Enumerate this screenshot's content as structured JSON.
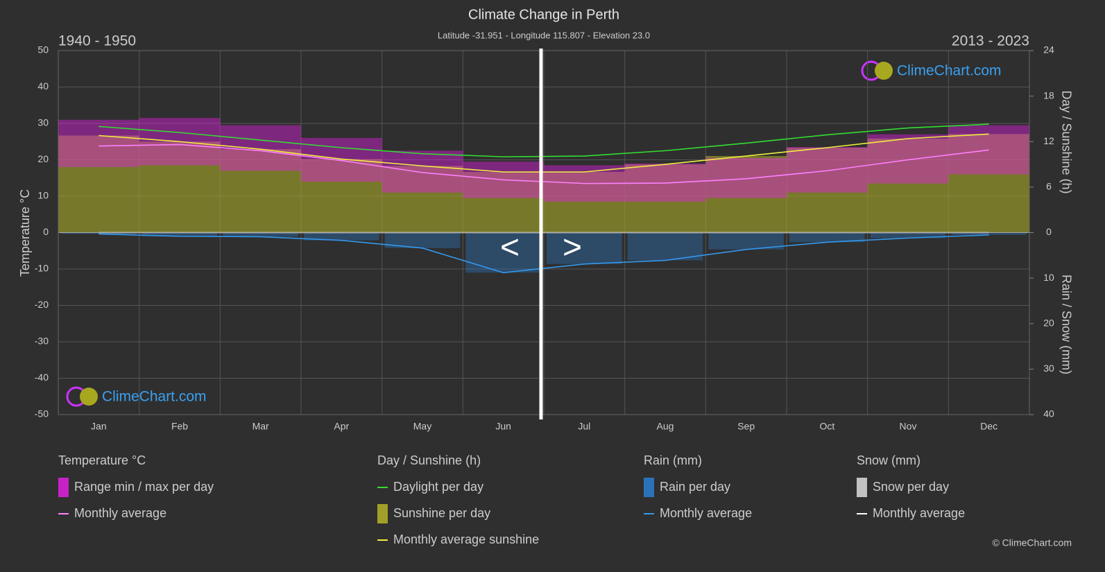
{
  "chart_data": {
    "type": "climate",
    "title": "Climate Change in Perth",
    "subtitle": "Latitude -31.951 - Longitude 115.807 - Elevation 23.0",
    "left_period": "1940 - 1950",
    "right_period": "2013 - 2023",
    "categories": [
      "Jan",
      "Feb",
      "Mar",
      "Apr",
      "May",
      "Jun",
      "Jul",
      "Aug",
      "Sep",
      "Oct",
      "Nov",
      "Dec"
    ],
    "ylabel": "Temperature °C",
    "y2label": "Day / Sunshine (h)",
    "y3label": "Rain / Snow (mm)",
    "ylim": [
      -50,
      50
    ],
    "yticks": [
      -50,
      -40,
      -30,
      -20,
      -10,
      0,
      10,
      20,
      30,
      40,
      50
    ],
    "y2lim": [
      0,
      24
    ],
    "y2ticks": [
      0,
      6,
      12,
      18,
      24
    ],
    "y3lim": [
      0,
      40
    ],
    "y3ticks": [
      10,
      20,
      30,
      40
    ],
    "grid": true,
    "legend_groups": [
      "Temperature °C",
      "Day / Sunshine (h)",
      "Rain (mm)",
      "Snow (mm)"
    ],
    "series": [
      {
        "name": "Range min / max per day",
        "group": 0,
        "kind": "band",
        "axis": "y",
        "color": "#e020e0",
        "values": [
          31,
          31.5,
          29.5,
          26,
          22.5,
          19.5,
          18.5,
          19,
          20.5,
          23.5,
          27,
          29.5
        ],
        "min_values": [
          18,
          18.5,
          17,
          14,
          11,
          9.5,
          8.5,
          8.5,
          9.5,
          11,
          13.5,
          16
        ]
      },
      {
        "name": "Monthly average",
        "group": 0,
        "kind": "line",
        "axis": "y",
        "color": "#ff80ff",
        "values": [
          23.8,
          24.2,
          22.5,
          19.8,
          16.5,
          14.5,
          13.5,
          13.6,
          14.8,
          17.0,
          20.0,
          22.7
        ]
      },
      {
        "name": "Daylight per day",
        "group": 1,
        "kind": "line",
        "axis": "y2",
        "color": "#33dd33",
        "values": [
          14.0,
          13.2,
          12.2,
          11.2,
          10.4,
          10.0,
          10.1,
          10.8,
          11.8,
          12.9,
          13.8,
          14.3
        ]
      },
      {
        "name": "Sunshine per day",
        "group": 1,
        "kind": "area",
        "axis": "y2",
        "color": "#b4b428",
        "values": [
          12.8,
          12.0,
          11.0,
          9.7,
          8.8,
          8.0,
          8.0,
          9.0,
          10.1,
          11.2,
          12.4,
          13.0
        ]
      },
      {
        "name": "Monthly average sunshine",
        "group": 1,
        "kind": "line",
        "axis": "y2",
        "color": "#f0f040",
        "values": [
          12.8,
          12.0,
          11.0,
          9.7,
          8.8,
          8.0,
          8.0,
          9.0,
          10.1,
          11.2,
          12.4,
          13.0
        ]
      },
      {
        "name": "Rain per day",
        "group": 2,
        "kind": "bars",
        "axis": "y3",
        "color": "#2a7fd0",
        "values": [
          0.3,
          0.8,
          0.9,
          1.7,
          3.4,
          8.8,
          6.9,
          6.1,
          3.7,
          2.1,
          1.2,
          0.5
        ]
      },
      {
        "name": "Monthly average",
        "group": 2,
        "kind": "line",
        "axis": "y3",
        "color": "#3399ee",
        "values": [
          0.3,
          0.8,
          0.9,
          1.7,
          3.4,
          8.8,
          6.9,
          6.1,
          3.7,
          2.1,
          1.2,
          0.5
        ]
      },
      {
        "name": "Snow per day",
        "group": 3,
        "kind": "bars",
        "axis": "y3",
        "color": "#dddddd",
        "values": [
          0,
          0,
          0,
          0,
          0,
          0,
          0,
          0,
          0,
          0,
          0,
          0
        ]
      },
      {
        "name": "Monthly average",
        "group": 3,
        "kind": "line",
        "axis": "y3",
        "color": "#ffffff",
        "values": [
          0,
          0,
          0,
          0,
          0,
          0,
          0,
          0,
          0,
          0,
          0,
          0
        ]
      }
    ],
    "nav": {
      "prev": "<",
      "next": ">"
    },
    "watermark": "ClimeChart.com",
    "copyright": "© ClimeChart.com"
  }
}
